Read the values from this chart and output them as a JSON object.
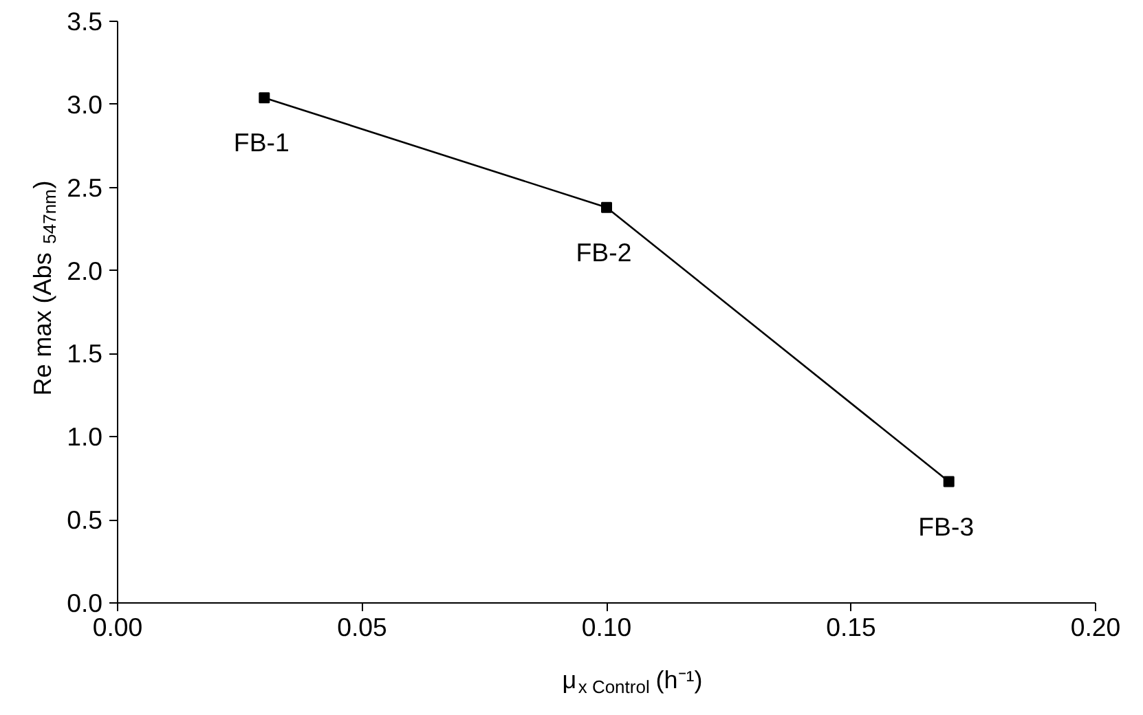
{
  "chart_data": {
    "type": "line",
    "xlabel": "μ$_{x Control}$ (h⁻¹)",
    "ylabel": "Re max (Abs $_{547nm}$)",
    "x": [
      0.03,
      0.1,
      0.17
    ],
    "series": [
      {
        "color": "#000000",
        "values": [
          3.04,
          2.38,
          0.73
        ]
      }
    ],
    "marker": "square",
    "xlim": [
      0.0,
      0.2
    ],
    "xticks": [
      {
        "value": 0,
        "label": "0.00"
      },
      0.05,
      {
        "value": 0.1,
        "label": "0.10"
      },
      0.15,
      {
        "value": 0.2,
        "label": "0.20"
      }
    ],
    "ylim": [
      0.0,
      3.5
    ],
    "yticks": [
      {
        "value": 0,
        "label": "0.0"
      },
      0.5,
      {
        "value": 1,
        "label": "1.0"
      },
      1.5,
      {
        "value": 2,
        "label": "2.0"
      },
      2.5,
      {
        "value": 3,
        "label": "3.0"
      },
      3.5
    ],
    "annotations": [
      {
        "text": "FB-1",
        "x": 0.03,
        "y": 3.04
      },
      {
        "text": "FB-2",
        "x": 0.1,
        "y": 2.38
      },
      {
        "text": "FB-3",
        "x": 0.17,
        "y": 0.73
      }
    ]
  }
}
